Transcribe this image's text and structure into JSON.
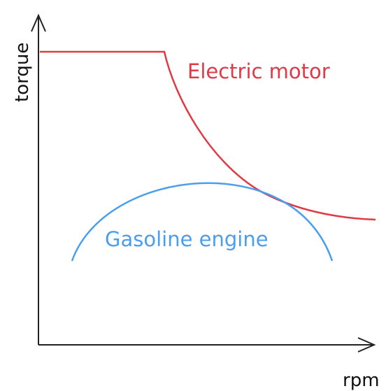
{
  "axes": {
    "x_label": "rpm",
    "y_label": "torque"
  },
  "curves": [
    {
      "label": "Electric motor"
    },
    {
      "label": "Gasoline engine"
    }
  ]
}
